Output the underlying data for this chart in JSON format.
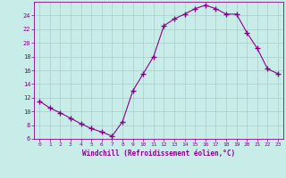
{
  "x": [
    0,
    1,
    2,
    3,
    4,
    5,
    6,
    7,
    8,
    9,
    10,
    11,
    12,
    13,
    14,
    15,
    16,
    17,
    18,
    19,
    20,
    21,
    22,
    23
  ],
  "y": [
    11.5,
    10.5,
    9.8,
    9.0,
    8.2,
    7.5,
    7.0,
    6.4,
    8.5,
    13.0,
    15.5,
    18.0,
    22.5,
    23.5,
    24.2,
    25.0,
    25.5,
    25.0,
    24.2,
    24.2,
    21.5,
    19.2,
    16.2,
    15.5
  ],
  "line_color": "#8b008b",
  "marker": "+",
  "marker_size": 4,
  "marker_linewidth": 1.0,
  "bg_color": "#c8ece8",
  "grid_color": "#aacccc",
  "xlabel": "Windchill (Refroidissement éolien,°C)",
  "xlabel_color": "#8b008b",
  "tick_color": "#8b008b",
  "ylim": [
    6,
    26
  ],
  "xlim": [
    -0.5,
    23.5
  ],
  "yticks": [
    6,
    8,
    10,
    12,
    14,
    16,
    18,
    20,
    22,
    24
  ],
  "xticks": [
    0,
    1,
    2,
    3,
    4,
    5,
    6,
    7,
    8,
    9,
    10,
    11,
    12,
    13,
    14,
    15,
    16,
    17,
    18,
    19,
    20,
    21,
    22,
    23
  ],
  "figsize": [
    3.2,
    2.0
  ],
  "dpi": 100
}
